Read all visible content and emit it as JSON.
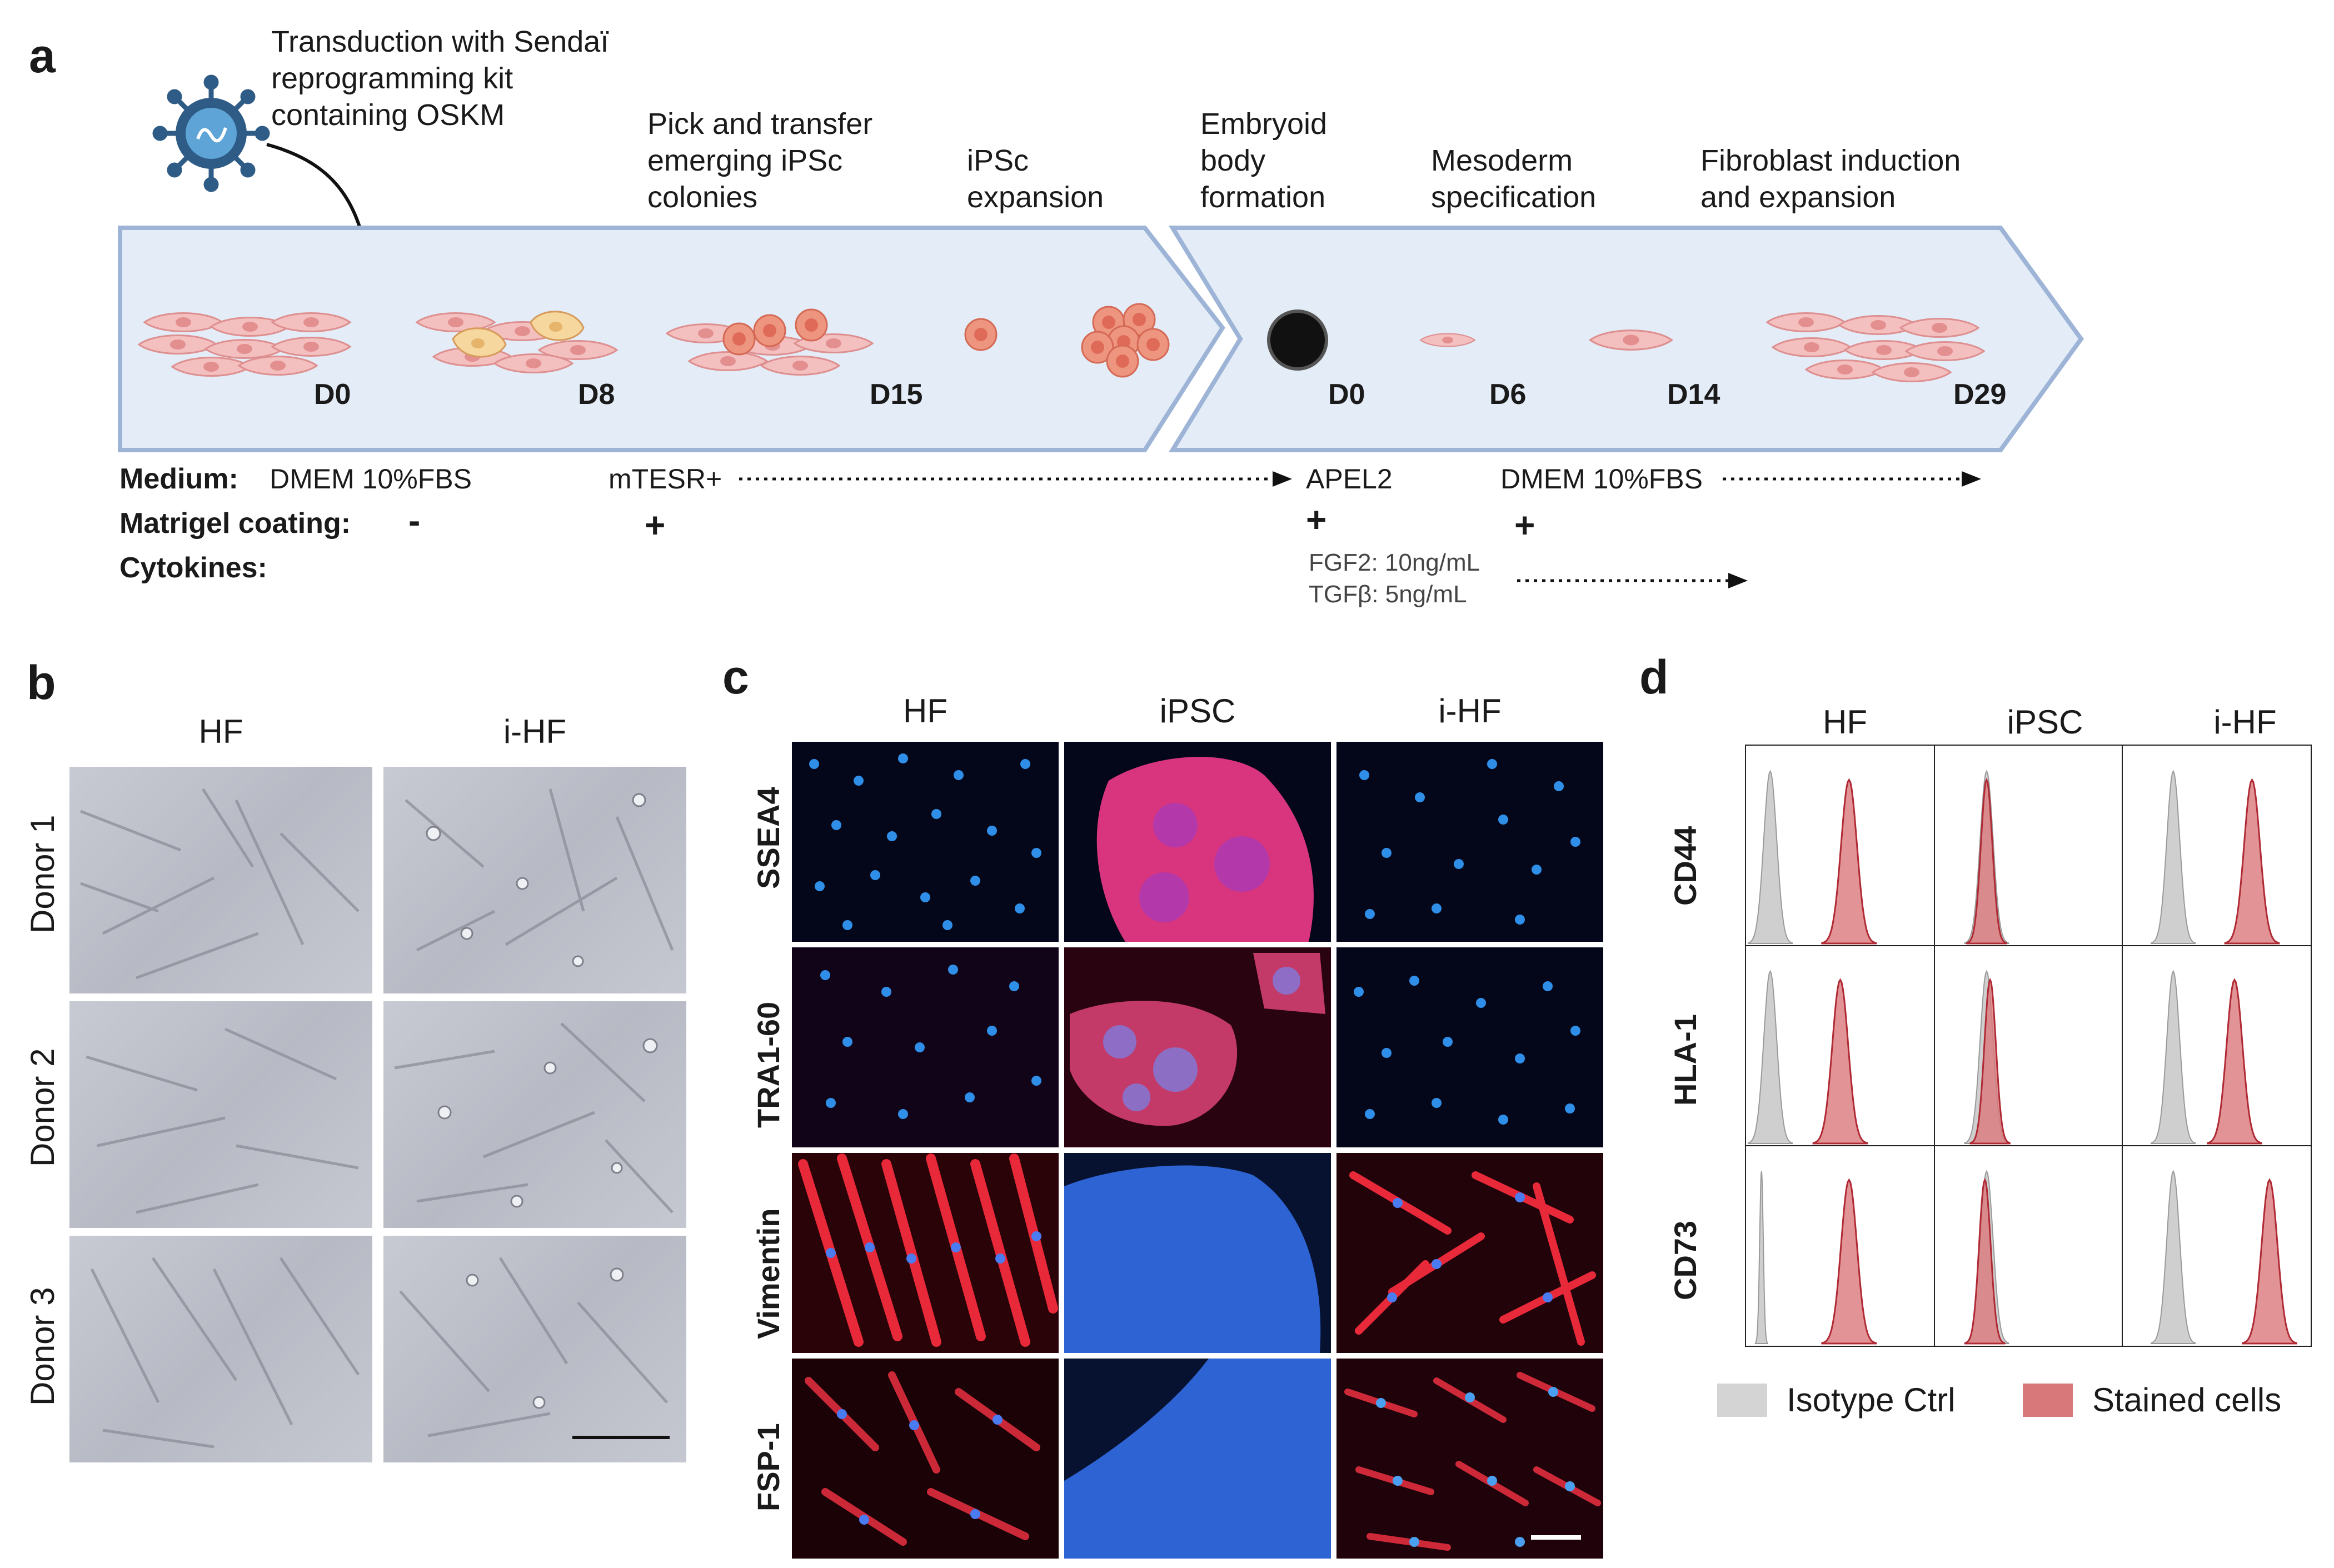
{
  "panel_a": {
    "label": "a",
    "steps": {
      "transduction": [
        "Transduction with Sendaï",
        "reprogramming kit",
        "containing OSKM"
      ],
      "pick": [
        "Pick and transfer",
        "emerging iPSc",
        "colonies"
      ],
      "expansion": [
        "iPSc",
        "expansion"
      ],
      "embryoid": [
        "Embryoid",
        "body",
        "formation"
      ],
      "mesoderm": [
        "Mesoderm",
        "specification"
      ],
      "fibroblast": [
        "Fibroblast induction",
        "and expansion"
      ]
    },
    "days": [
      "D0",
      "D8",
      "D15",
      "D0",
      "D6",
      "D14",
      "D29"
    ],
    "rows": {
      "medium_label": "Medium:",
      "matrigel_label": "Matrigel coating:",
      "cytokines_label": "Cytokines:",
      "medium_values": [
        "DMEM 10%FBS",
        "mTESR+",
        "APEL2",
        "DMEM 10%FBS"
      ],
      "matrigel_values": [
        "-",
        "+",
        "+",
        "+"
      ],
      "cytokine_values": [
        "FGF2: 10ng/mL",
        "TGFβ: 5ng/mL"
      ]
    },
    "colors": {
      "arrow_fill": "#e3ecf7",
      "arrow_stroke": "#9db4d6",
      "cell_fill": "#f4bfbf",
      "cell_stroke": "#de8f8f",
      "colony_fill": "#ec8b78"
    }
  },
  "panel_b": {
    "label": "b",
    "columns": [
      "HF",
      "i-HF"
    ],
    "rows": [
      "Donor 1",
      "Donor 2",
      "Donor 3"
    ]
  },
  "panel_c": {
    "label": "c",
    "columns": [
      "HF",
      "iPSC",
      "i-HF"
    ],
    "markers": [
      "SSEA4",
      "TRA1-60",
      "Vimentin",
      "FSP-1"
    ]
  },
  "panel_d": {
    "label": "d",
    "columns": [
      "HF",
      "iPSC",
      "i-HF"
    ],
    "markers": [
      "CD44",
      "HLA-1",
      "CD73"
    ],
    "legend": {
      "isotype": "Isotype Ctrl",
      "stained": "Stained cells"
    },
    "colors": {
      "isotype": "#cfcfcf",
      "stained": "#d9787a",
      "stained_line": "#b02a35"
    }
  },
  "chart_data": {
    "type": "histogram-grid",
    "title": "",
    "columns": [
      "HF",
      "iPSC",
      "i-HF"
    ],
    "rows": [
      "CD44",
      "HLA-1",
      "CD73"
    ],
    "series": [
      "Isotype Ctrl",
      "Stained cells"
    ],
    "x_range": [
      0,
      1
    ],
    "peaks_relative_position": {
      "CD44": {
        "HF": [
          0.1,
          0.55
        ],
        "iPSC": [
          0.26,
          0.26
        ],
        "i-HF": [
          0.25,
          0.7
        ]
      },
      "HLA-1": {
        "HF": [
          0.1,
          0.5
        ],
        "iPSC": [
          0.26,
          0.28
        ],
        "i-HF": [
          0.25,
          0.6
        ]
      },
      "CD73": {
        "HF": [
          0.05,
          0.55
        ],
        "iPSC": [
          0.26,
          0.25
        ],
        "i-HF": [
          0.25,
          0.8
        ]
      }
    }
  }
}
